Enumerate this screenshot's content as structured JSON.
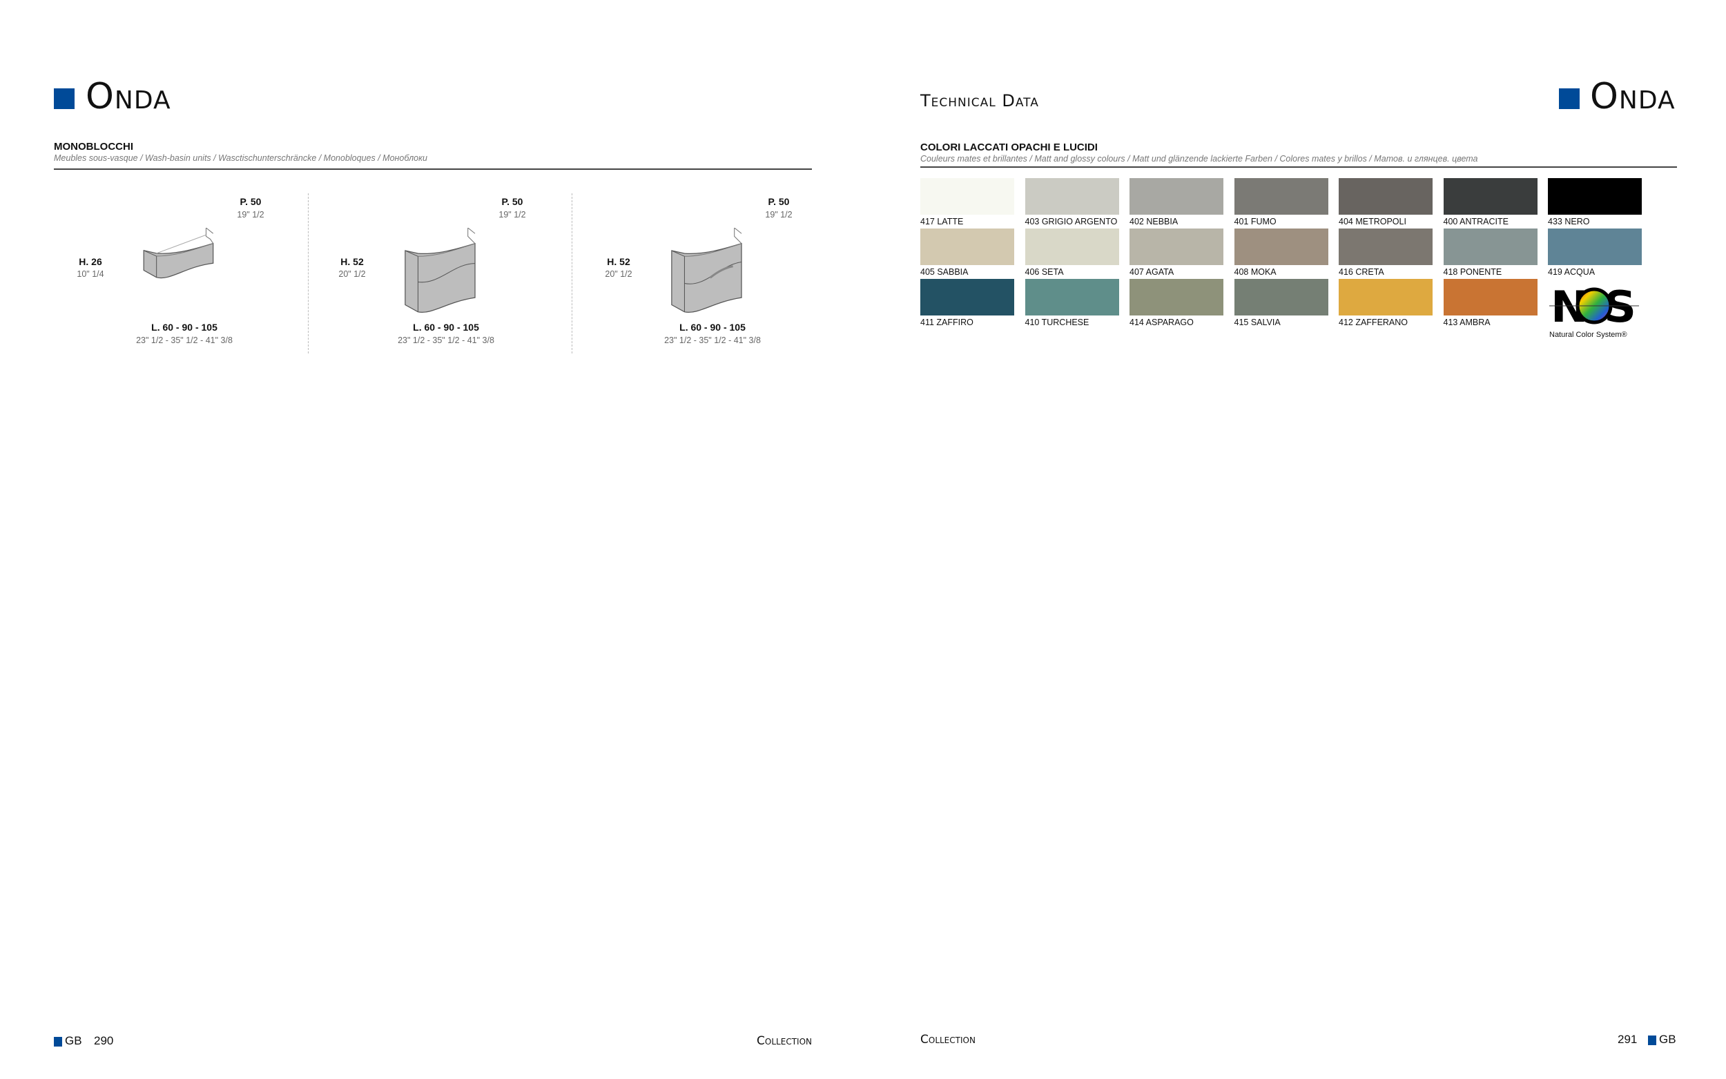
{
  "left_page": {
    "brand": "Onda",
    "section_title": "MONOBLOCCHI",
    "section_subtitle": "Meubles sous-vasque /  Wash-basin units / Wasctischunterschräncke / Monobloques / Моноблоки",
    "products": [
      {
        "depth": "P. 50",
        "depth_in": "19\" 1/2",
        "height": "H. 26",
        "height_in": "10\" 1/4",
        "width": "L. 60 - 90 - 105",
        "width_in": "23\" 1/2 - 35\" 1/2 - 41\" 3/8",
        "drawing": "single-drawer"
      },
      {
        "depth": "P. 50",
        "depth_in": "19\" 1/2",
        "height": "H. 52",
        "height_in": "20\" 1/2",
        "width": "L. 60 - 90 - 105",
        "width_in": "23\" 1/2 - 35\" 1/2 - 41\" 3/8",
        "drawing": "two-drawer"
      },
      {
        "depth": "P. 50",
        "depth_in": "19\" 1/2",
        "height": "H. 52",
        "height_in": "20\" 1/2",
        "width": "L. 60 - 90 - 105",
        "width_in": "23\" 1/2 - 35\" 1/2 - 41\" 3/8",
        "drawing": "two-drawer-handle"
      }
    ],
    "footer": {
      "lang": "GB",
      "page": "290",
      "collection": "Collection"
    }
  },
  "right_page": {
    "header": "Technical Data",
    "brand": "Onda",
    "section_title": "COLORI LACCATI OPACHI E LUCIDI",
    "section_subtitle": "Couleurs mates et brillantes  / Matt and glossy colours / Matt und glänzende lackierte Farben / Colores mates y brillos / Матов. и глянцев. цвета",
    "swatches": [
      {
        "label": "417 LATTE",
        "color": "#f7f8f1"
      },
      {
        "label": "403 GRIGIO ARGENTO",
        "color": "#cbcbc3"
      },
      {
        "label": "402 NEBBIA",
        "color": "#a8a8a3"
      },
      {
        "label": "401 FUMO",
        "color": "#7b7a75"
      },
      {
        "label": "404 METROPOLI",
        "color": "#686460"
      },
      {
        "label": "400 ANTRACITE",
        "color": "#3a3d3d"
      },
      {
        "label": "433 NERO",
        "color": "#000000"
      },
      {
        "label": "405 SABBIA",
        "color": "#d3c9b0"
      },
      {
        "label": "406 SETA",
        "color": "#d9d8c8"
      },
      {
        "label": "407 AGATA",
        "color": "#b8b5a8"
      },
      {
        "label": "408 MOKA",
        "color": "#9e9080"
      },
      {
        "label": "416 CRETA",
        "color": "#7c7770"
      },
      {
        "label": "418 PONENTE",
        "color": "#879594"
      },
      {
        "label": "419 ACQUA",
        "color": "#5f8496"
      },
      {
        "label": "411 ZAFFIRO",
        "color": "#235264"
      },
      {
        "label": "410 TURCHESE",
        "color": "#5f8e8a"
      },
      {
        "label": "414 ASPARAGO",
        "color": "#8e927a"
      },
      {
        "label": "415 SALVIA",
        "color": "#757f74"
      },
      {
        "label": "412 ZAFFERANO",
        "color": "#dea940"
      },
      {
        "label": "413 AMBRA",
        "color": "#c97433"
      }
    ],
    "ncs_logo": {
      "text": "NCS",
      "caption": "Natural Color System®"
    },
    "footer": {
      "collection": "Collection",
      "page": "291",
      "lang": "GB"
    }
  },
  "colors": {
    "accent": "#004a98"
  }
}
